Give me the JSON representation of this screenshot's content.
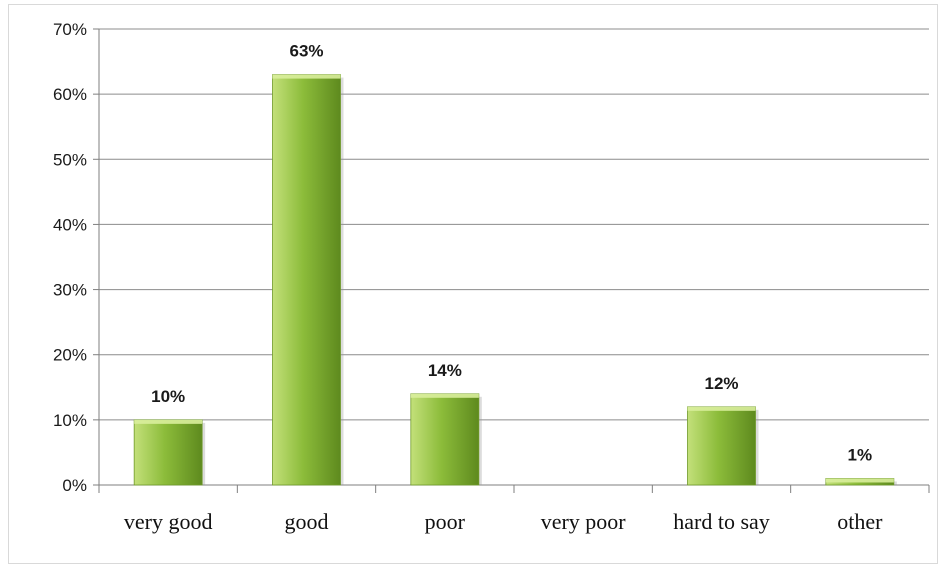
{
  "chart_data": {
    "type": "bar",
    "categories": [
      "very good",
      "good",
      "poor",
      "very poor",
      "hard to say",
      "other"
    ],
    "values": [
      10,
      63,
      14,
      0,
      12,
      1
    ],
    "data_labels": [
      "10%",
      "63%",
      "14%",
      "",
      "12%",
      "1%"
    ],
    "title": "",
    "xlabel": "",
    "ylabel": "",
    "ylim": [
      0,
      70
    ],
    "yticks": [
      "0%",
      "10%",
      "20%",
      "30%",
      "40%",
      "50%",
      "60%",
      "70%"
    ],
    "grid": true,
    "legend": "none",
    "colors": {
      "bar_light": "#c3e07a",
      "bar_mid": "#8cbc3a",
      "bar_dark": "#5e8a1e",
      "bar_top": "#d9ee9c",
      "grid": "#8c8c8c",
      "axis": "#7f7f7f"
    }
  }
}
